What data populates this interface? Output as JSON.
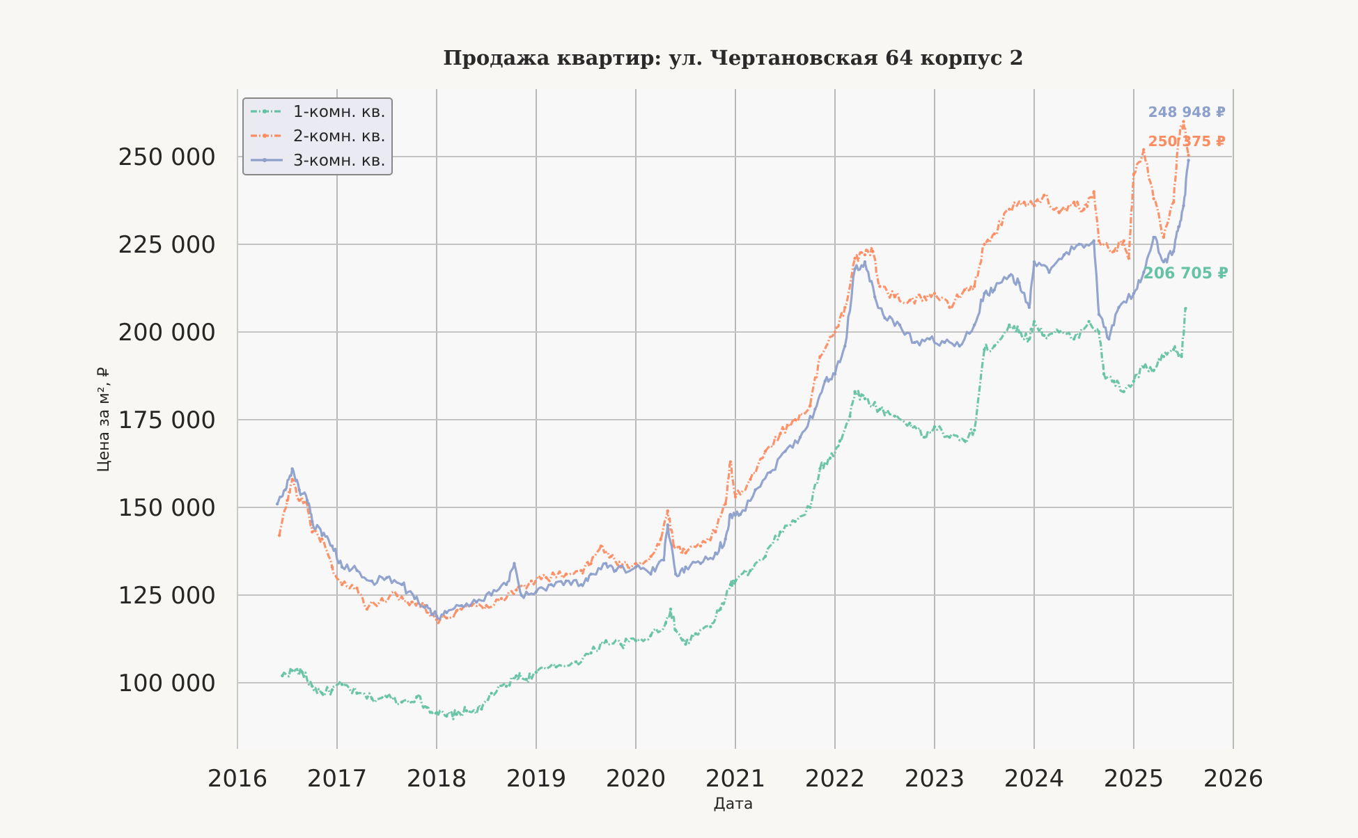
{
  "chart_data": {
    "type": "line",
    "title": "Продажа квартир: ул. Чертановская 64 корпус 2",
    "xlabel": "Дата",
    "ylabel": "Цена за м², ₽",
    "xlim": [
      2016,
      2026
    ],
    "ylim": [
      80000,
      270000
    ],
    "x_ticks": [
      2016,
      2017,
      2018,
      2019,
      2020,
      2021,
      2022,
      2023,
      2024,
      2025,
      2026
    ],
    "x_tick_labels": [
      "2016",
      "2017",
      "2018",
      "2019",
      "2020",
      "2021",
      "2022",
      "2023",
      "2024",
      "2025",
      "2026"
    ],
    "y_ticks": [
      100000,
      125000,
      150000,
      175000,
      200000,
      225000,
      250000
    ],
    "y_tick_labels": [
      "100 000",
      "125 000",
      "150 000",
      "175 000",
      "200 000",
      "225 000",
      "250 000"
    ],
    "grid": true,
    "legend_position": "top-left",
    "series": [
      {
        "name": "1-комн. кв.",
        "color": "#66c2a5",
        "line_style": "dash-dot",
        "end_label": "206 705 ₽",
        "points": [
          [
            2016.45,
            102000
          ],
          [
            2016.55,
            103500
          ],
          [
            2016.65,
            103000
          ],
          [
            2016.75,
            99000
          ],
          [
            2016.85,
            97000
          ],
          [
            2016.95,
            98000
          ],
          [
            2017.05,
            99500
          ],
          [
            2017.2,
            97000
          ],
          [
            2017.35,
            95500
          ],
          [
            2017.5,
            96000
          ],
          [
            2017.65,
            94500
          ],
          [
            2017.8,
            96000
          ],
          [
            2017.9,
            93000
          ],
          [
            2018.0,
            91500
          ],
          [
            2018.1,
            90500
          ],
          [
            2018.2,
            91000
          ],
          [
            2018.3,
            92000
          ],
          [
            2018.45,
            92500
          ],
          [
            2018.55,
            97000
          ],
          [
            2018.7,
            99000
          ],
          [
            2018.8,
            102000
          ],
          [
            2018.9,
            101000
          ],
          [
            2019.0,
            103000
          ],
          [
            2019.2,
            104500
          ],
          [
            2019.4,
            106000
          ],
          [
            2019.55,
            108500
          ],
          [
            2019.7,
            112000
          ],
          [
            2019.85,
            111000
          ],
          [
            2020.0,
            112000
          ],
          [
            2020.15,
            113500
          ],
          [
            2020.3,
            117000
          ],
          [
            2020.35,
            121000
          ],
          [
            2020.4,
            115000
          ],
          [
            2020.5,
            111000
          ],
          [
            2020.6,
            114000
          ],
          [
            2020.75,
            116000
          ],
          [
            2020.85,
            121000
          ],
          [
            2020.95,
            128000
          ],
          [
            2021.0,
            129000
          ],
          [
            2021.15,
            132000
          ],
          [
            2021.3,
            136000
          ],
          [
            2021.45,
            143000
          ],
          [
            2021.6,
            146000
          ],
          [
            2021.75,
            150000
          ],
          [
            2021.85,
            161000
          ],
          [
            2021.95,
            164000
          ],
          [
            2022.05,
            169000
          ],
          [
            2022.15,
            176000
          ],
          [
            2022.2,
            183000
          ],
          [
            2022.3,
            181000
          ],
          [
            2022.45,
            178000
          ],
          [
            2022.6,
            176000
          ],
          [
            2022.75,
            174000
          ],
          [
            2022.9,
            170000
          ],
          [
            2023.0,
            173000
          ],
          [
            2023.15,
            170000
          ],
          [
            2023.3,
            169000
          ],
          [
            2023.4,
            172000
          ],
          [
            2023.5,
            195000
          ],
          [
            2023.6,
            196000
          ],
          [
            2023.75,
            202000
          ],
          [
            2023.85,
            200000
          ],
          [
            2023.95,
            198000
          ],
          [
            2024.0,
            203000
          ],
          [
            2024.1,
            199000
          ],
          [
            2024.25,
            200000
          ],
          [
            2024.4,
            198000
          ],
          [
            2024.55,
            203000
          ],
          [
            2024.65,
            200000
          ],
          [
            2024.7,
            188000
          ],
          [
            2024.8,
            186000
          ],
          [
            2024.9,
            183000
          ],
          [
            2025.0,
            186000
          ],
          [
            2025.1,
            190000
          ],
          [
            2025.2,
            189000
          ],
          [
            2025.3,
            193000
          ],
          [
            2025.4,
            195000
          ],
          [
            2025.48,
            193000
          ],
          [
            2025.52,
            206705
          ]
        ]
      },
      {
        "name": "2-комн. кв.",
        "color": "#fc8d62",
        "line_style": "dash-dot",
        "end_label": "250 375 ₽",
        "points": [
          [
            2016.42,
            142000
          ],
          [
            2016.5,
            152000
          ],
          [
            2016.55,
            158000
          ],
          [
            2016.62,
            152000
          ],
          [
            2016.7,
            151000
          ],
          [
            2016.75,
            143000
          ],
          [
            2016.85,
            141000
          ],
          [
            2016.95,
            133000
          ],
          [
            2017.05,
            128000
          ],
          [
            2017.2,
            127000
          ],
          [
            2017.3,
            121000
          ],
          [
            2017.45,
            124000
          ],
          [
            2017.6,
            125000
          ],
          [
            2017.75,
            123000
          ],
          [
            2017.88,
            122000
          ],
          [
            2018.0,
            118000
          ],
          [
            2018.1,
            118500
          ],
          [
            2018.2,
            120500
          ],
          [
            2018.35,
            122000
          ],
          [
            2018.5,
            122000
          ],
          [
            2018.65,
            124000
          ],
          [
            2018.8,
            126500
          ],
          [
            2018.95,
            129000
          ],
          [
            2019.1,
            130000
          ],
          [
            2019.3,
            131000
          ],
          [
            2019.45,
            132000
          ],
          [
            2019.55,
            134000
          ],
          [
            2019.65,
            139000
          ],
          [
            2019.75,
            136000
          ],
          [
            2019.85,
            133000
          ],
          [
            2020.0,
            134000
          ],
          [
            2020.15,
            136000
          ],
          [
            2020.25,
            141000
          ],
          [
            2020.32,
            149000
          ],
          [
            2020.38,
            139000
          ],
          [
            2020.5,
            137000
          ],
          [
            2020.65,
            139000
          ],
          [
            2020.8,
            143000
          ],
          [
            2020.9,
            151000
          ],
          [
            2020.95,
            163000
          ],
          [
            2021.0,
            153000
          ],
          [
            2021.15,
            158000
          ],
          [
            2021.3,
            166000
          ],
          [
            2021.45,
            171000
          ],
          [
            2021.6,
            175000
          ],
          [
            2021.75,
            179000
          ],
          [
            2021.85,
            193000
          ],
          [
            2022.0,
            200000
          ],
          [
            2022.1,
            207000
          ],
          [
            2022.2,
            221000
          ],
          [
            2022.3,
            222000
          ],
          [
            2022.38,
            223000
          ],
          [
            2022.45,
            213000
          ],
          [
            2022.6,
            210000
          ],
          [
            2022.75,
            209000
          ],
          [
            2022.9,
            210000
          ],
          [
            2023.0,
            211000
          ],
          [
            2023.15,
            207000
          ],
          [
            2023.3,
            212000
          ],
          [
            2023.4,
            213000
          ],
          [
            2023.5,
            225000
          ],
          [
            2023.6,
            228000
          ],
          [
            2023.75,
            235000
          ],
          [
            2023.9,
            237000
          ],
          [
            2024.0,
            236000
          ],
          [
            2024.1,
            239000
          ],
          [
            2024.25,
            234000
          ],
          [
            2024.4,
            237000
          ],
          [
            2024.5,
            235000
          ],
          [
            2024.6,
            240000
          ],
          [
            2024.65,
            226000
          ],
          [
            2024.8,
            223000
          ],
          [
            2024.9,
            226000
          ],
          [
            2024.95,
            221000
          ],
          [
            2025.0,
            245000
          ],
          [
            2025.1,
            252000
          ],
          [
            2025.2,
            238000
          ],
          [
            2025.3,
            227000
          ],
          [
            2025.4,
            237000
          ],
          [
            2025.45,
            255000
          ],
          [
            2025.5,
            260000
          ],
          [
            2025.55,
            250375
          ]
        ]
      },
      {
        "name": "3-комн. кв.",
        "color": "#8da0cb",
        "line_style": "solid",
        "end_label": "248 948 ₽",
        "points": [
          [
            2016.4,
            151000
          ],
          [
            2016.48,
            155000
          ],
          [
            2016.55,
            161000
          ],
          [
            2016.62,
            155000
          ],
          [
            2016.7,
            152000
          ],
          [
            2016.75,
            146000
          ],
          [
            2016.85,
            142000
          ],
          [
            2016.95,
            139000
          ],
          [
            2017.05,
            133000
          ],
          [
            2017.2,
            132000
          ],
          [
            2017.35,
            129000
          ],
          [
            2017.5,
            130000
          ],
          [
            2017.65,
            128000
          ],
          [
            2017.78,
            124000
          ],
          [
            2017.9,
            122000
          ],
          [
            2018.0,
            119000
          ],
          [
            2018.1,
            120000
          ],
          [
            2018.25,
            122000
          ],
          [
            2018.4,
            123000
          ],
          [
            2018.55,
            125000
          ],
          [
            2018.7,
            128000
          ],
          [
            2018.78,
            134000
          ],
          [
            2018.85,
            125000
          ],
          [
            2019.0,
            126000
          ],
          [
            2019.15,
            128000
          ],
          [
            2019.3,
            129000
          ],
          [
            2019.45,
            128000
          ],
          [
            2019.55,
            131000
          ],
          [
            2019.7,
            134000
          ],
          [
            2019.8,
            132000
          ],
          [
            2020.0,
            133000
          ],
          [
            2020.15,
            131000
          ],
          [
            2020.28,
            135000
          ],
          [
            2020.32,
            145000
          ],
          [
            2020.4,
            131000
          ],
          [
            2020.5,
            133000
          ],
          [
            2020.65,
            134000
          ],
          [
            2020.8,
            137000
          ],
          [
            2020.9,
            141000
          ],
          [
            2020.95,
            148000
          ],
          [
            2021.05,
            148000
          ],
          [
            2021.2,
            155000
          ],
          [
            2021.35,
            160000
          ],
          [
            2021.5,
            166000
          ],
          [
            2021.65,
            170000
          ],
          [
            2021.8,
            178000
          ],
          [
            2021.9,
            186000
          ],
          [
            2022.0,
            188000
          ],
          [
            2022.1,
            196000
          ],
          [
            2022.2,
            218000
          ],
          [
            2022.3,
            220000
          ],
          [
            2022.4,
            210000
          ],
          [
            2022.5,
            204000
          ],
          [
            2022.65,
            202000
          ],
          [
            2022.8,
            197000
          ],
          [
            2022.95,
            198000
          ],
          [
            2023.1,
            197000
          ],
          [
            2023.25,
            196000
          ],
          [
            2023.4,
            202000
          ],
          [
            2023.5,
            211000
          ],
          [
            2023.6,
            212000
          ],
          [
            2023.75,
            216000
          ],
          [
            2023.85,
            214000
          ],
          [
            2023.95,
            207000
          ],
          [
            2024.0,
            220000
          ],
          [
            2024.15,
            217000
          ],
          [
            2024.3,
            222000
          ],
          [
            2024.45,
            225000
          ],
          [
            2024.6,
            226000
          ],
          [
            2024.65,
            205000
          ],
          [
            2024.75,
            198000
          ],
          [
            2024.85,
            207000
          ],
          [
            2025.0,
            211000
          ],
          [
            2025.1,
            217000
          ],
          [
            2025.2,
            227000
          ],
          [
            2025.3,
            220000
          ],
          [
            2025.4,
            223000
          ],
          [
            2025.45,
            230000
          ],
          [
            2025.5,
            236000
          ],
          [
            2025.55,
            248948
          ]
        ]
      }
    ]
  }
}
